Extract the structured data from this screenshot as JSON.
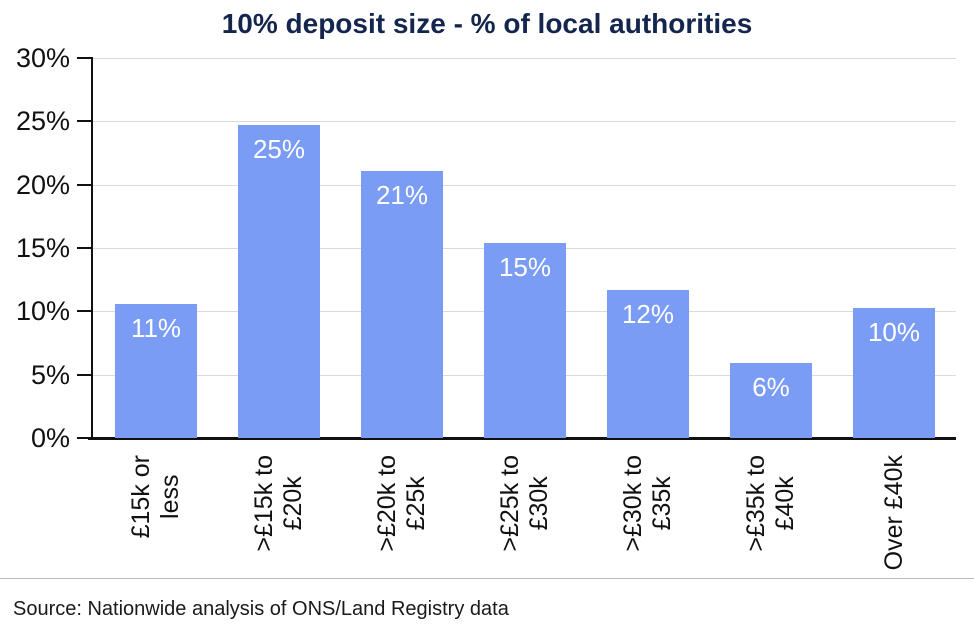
{
  "chart_data": {
    "type": "bar",
    "title": "10% deposit size - % of local authorities",
    "categories": [
      "£15k or less",
      ">£15k to £20k",
      ">£20k to £25k",
      ">£25k to £30k",
      ">£30k to £35k",
      ">£35k to £40k",
      "Over £40k"
    ],
    "category_lines": [
      [
        "£15k or",
        "less"
      ],
      [
        ">£15k to",
        "£20k"
      ],
      [
        ">£20k to",
        "£25k"
      ],
      [
        ">£25k to",
        "£30k"
      ],
      [
        ">£30k to",
        "£35k"
      ],
      [
        ">£35k to",
        "£40k"
      ],
      [
        "Over £40k"
      ]
    ],
    "values": [
      10.6,
      24.7,
      21.1,
      15.4,
      11.7,
      5.9,
      10.3
    ],
    "bar_labels": [
      "11%",
      "25%",
      "21%",
      "15%",
      "12%",
      "6%",
      "10%"
    ],
    "xlabel": "",
    "ylabel": "",
    "ylim": [
      0,
      30
    ],
    "ytick_step": 5,
    "ytick_labels": [
      "0%",
      "5%",
      "10%",
      "15%",
      "20%",
      "25%",
      "30%"
    ],
    "grid": "horizontal",
    "legend": "none",
    "colors": {
      "bar": "#7A9CF5",
      "title": "#14254E",
      "axis": "#111111",
      "gridline": "#DADADA",
      "tick_text": "#111111",
      "bar_label_text": "#FFFFFF",
      "separator": "#BBBBBB",
      "source_text": "#1A1A1A",
      "background": "#FFFFFF"
    },
    "source": "Source: Nationwide analysis of ONS/Land Registry data"
  }
}
